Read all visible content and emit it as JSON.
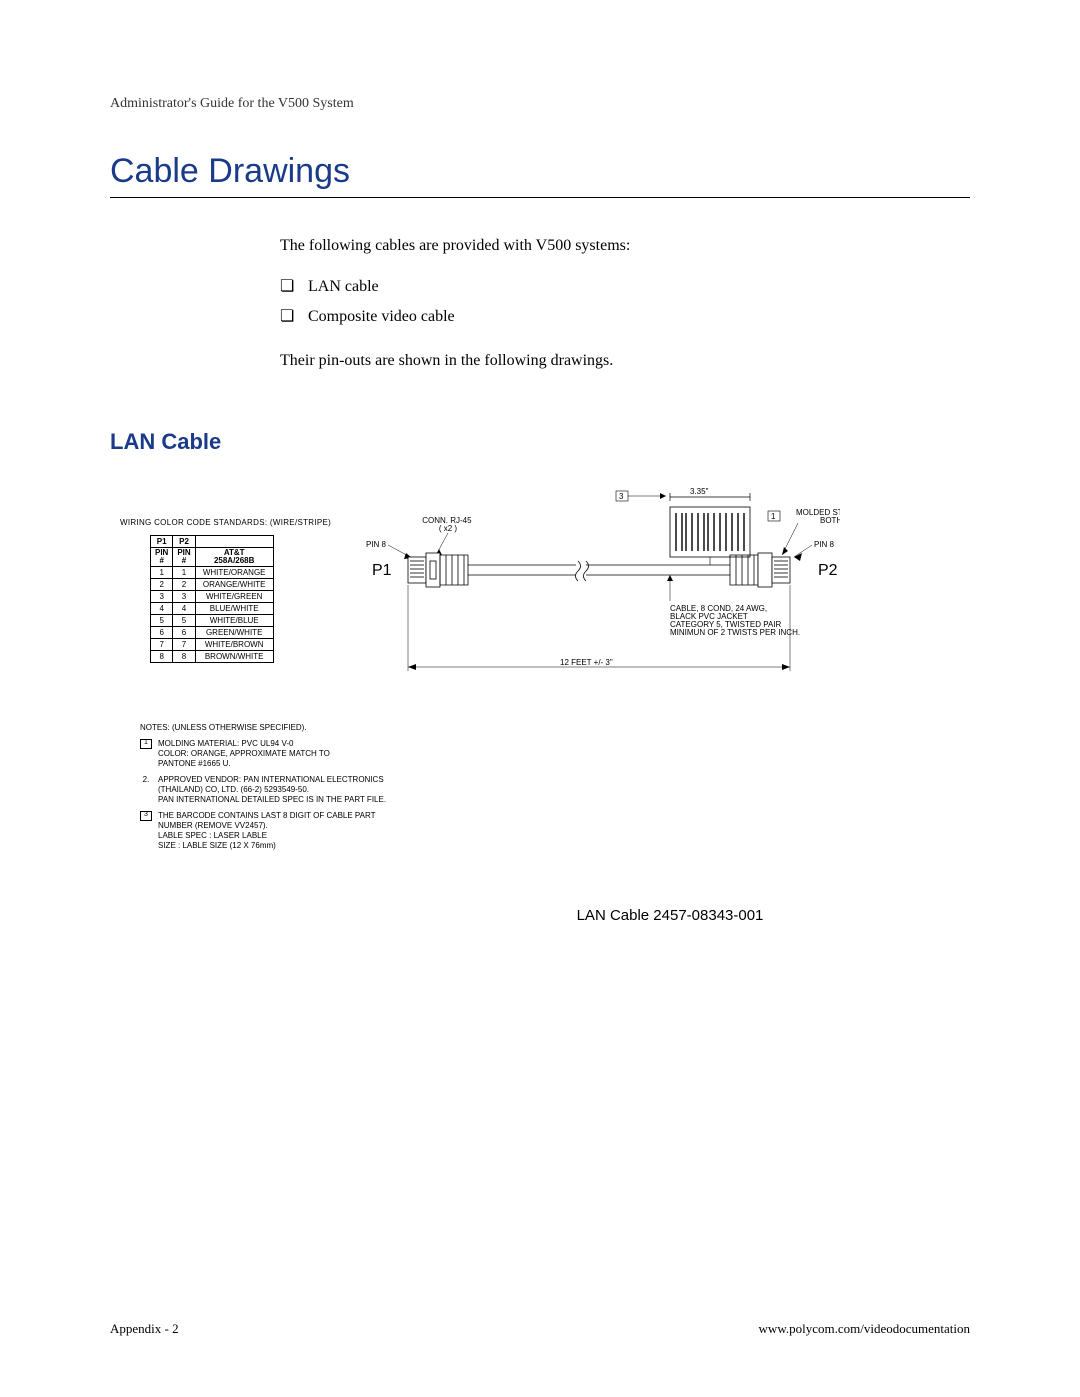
{
  "colors": {
    "heading_blue": "#1a3a8a",
    "text": "#000000",
    "background": "#ffffff",
    "rule": "#000000"
  },
  "header": "Administrator's Guide for the V500 System",
  "h1": "Cable Drawings",
  "intro": "The following cables are provided with V500 systems:",
  "checklist": {
    "item1": "LAN cable",
    "item2": "Composite video cable"
  },
  "intro2": "Their pin-outs are shown in the following drawings.",
  "h2": "LAN Cable",
  "diagram": {
    "wiring_title": "WIRING COLOR CODE STANDARDS: (WIRE/STRIPE)",
    "table": {
      "col1": "P1",
      "col2": "P2",
      "pinhdr": "PIN\n#",
      "atthdr": "AT&T\n258A/268B",
      "rows": [
        {
          "a": "1",
          "b": "1",
          "c": "WHITE/ORANGE"
        },
        {
          "a": "2",
          "b": "2",
          "c": "ORANGE/WHITE"
        },
        {
          "a": "3",
          "b": "3",
          "c": "WHITE/GREEN"
        },
        {
          "a": "4",
          "b": "4",
          "c": "BLUE/WHITE"
        },
        {
          "a": "5",
          "b": "5",
          "c": "WHITE/BLUE"
        },
        {
          "a": "6",
          "b": "6",
          "c": "GREEN/WHITE"
        },
        {
          "a": "7",
          "b": "7",
          "c": "WHITE/BROWN"
        },
        {
          "a": "8",
          "b": "8",
          "c": "BROWN/WHITE"
        }
      ]
    },
    "labels": {
      "conn": "CONN. RJ-45\n( x2 )",
      "pin8": "PIN 8",
      "pin8r": "PIN 8",
      "p1": "P1",
      "p2": "P2",
      "dim_top": "3.35\"",
      "dim_bottom": "12 FEET +/- 3\"",
      "callout3": "3",
      "callout1": "1",
      "strain": "MOLDED STRAIN RELIE\nBOTH ENDS.",
      "cable_spec": "CABLE, 8 COND, 24 AWG,\nBLACK PVC JACKET\nCATEGORY 5, TWISTED PAIR\nMINIMUN OF 2 TWISTS PER INCH."
    },
    "notes": {
      "title": "NOTES: (UNLESS OTHERWISE SPECIFIED).",
      "n1": "MOLDING MATERIAL: PVC UL94 V-0\nCOLOR: ORANGE, APPROXIMATE MATCH TO\nPANTONE #1665 U.",
      "n2": "APPROVED VENDOR: PAN INTERNATIONAL ELECTRONICS\n(THAILAND) CO, LTD. (66-2) 5293549-50.\nPAN INTERNATIONAL DETAILED SPEC IS IN THE PART FILE.",
      "n3": "THE BARCODE CONTAINS LAST 8 DIGIT OF CABLE PART\nNUMBER (REMOVE VV2457).\n   LABLE SPEC : LASER LABLE\n       SIZE : LABLE SIZE (12 X 76mm)"
    }
  },
  "figure_caption": "LAN Cable 2457-08343-001",
  "footer": {
    "left": "Appendix - 2",
    "right": "www.polycom.com/videodocumentation"
  }
}
